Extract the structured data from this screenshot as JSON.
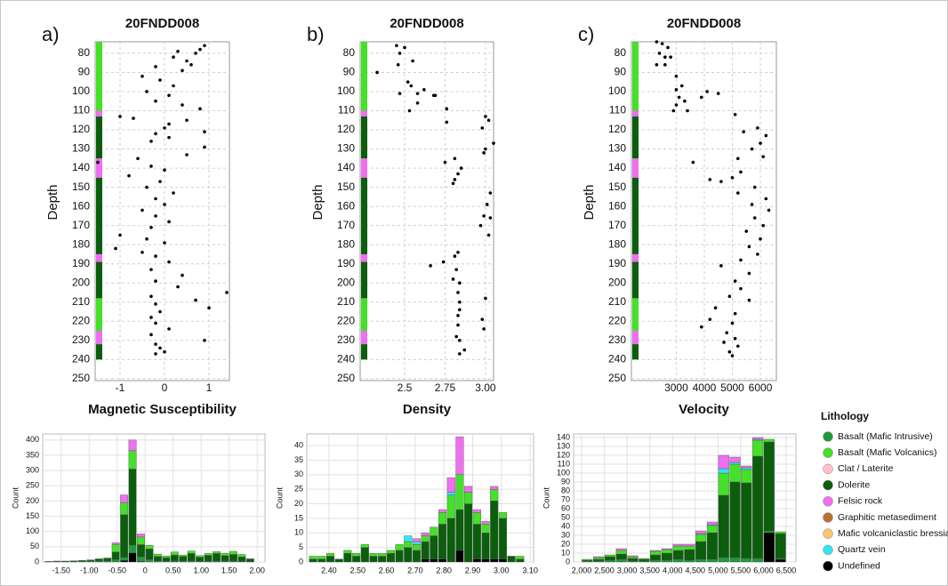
{
  "chart_data": [
    {
      "type": "scatter",
      "panel": "a)",
      "title": "20FNDD008",
      "ylabel": "Depth",
      "xlabel": "Magnetic Susceptibility",
      "color": "#000000",
      "grid": true,
      "y_inverted": true,
      "x": [
        0.9,
        0.8,
        0.3,
        0.7,
        0.2,
        0.5,
        0.6,
        -0.2,
        0.4,
        -0.5,
        -0.1,
        0.2,
        -0.4,
        0.1,
        -0.2,
        0.4,
        0.8,
        -1.0,
        -0.7,
        0.5,
        0.1,
        0.0,
        0.9,
        -0.2,
        0.1,
        -0.3,
        0.9,
        0.5,
        -0.6,
        -1.5,
        -0.3,
        0.0,
        -0.8,
        -0.1,
        -0.4,
        0.2,
        -0.2,
        0.0,
        -0.5,
        -0.2,
        0.1,
        -0.3,
        -1.0,
        -0.4,
        0.0,
        -1.1,
        -0.5,
        -0.2,
        0.1,
        -0.3,
        0.4,
        -0.2,
        0.3,
        1.4,
        -0.3,
        0.7,
        -0.2,
        1.0,
        -0.1,
        -0.3,
        -0.2,
        0.1,
        -0.3,
        0.9,
        -0.2,
        -0.1,
        0.0,
        -0.2
      ],
      "y": [
        76,
        78,
        79,
        80,
        82,
        84,
        86,
        87,
        89,
        92,
        94,
        97,
        100,
        102,
        105,
        107,
        109,
        113,
        114,
        115,
        117,
        119,
        121,
        122,
        124,
        126,
        129,
        133,
        135,
        137,
        139,
        141,
        144,
        147,
        150,
        153,
        156,
        159,
        162,
        165,
        168,
        171,
        175,
        177,
        179,
        182,
        184,
        186,
        189,
        193,
        196,
        199,
        202,
        205,
        207,
        209,
        211,
        213,
        215,
        218,
        221,
        224,
        227,
        230,
        232,
        234,
        236,
        237
      ],
      "xlim": [
        -1.56,
        1.46
      ],
      "ylim": [
        74,
        251
      ],
      "xticks": [
        -1,
        0,
        1
      ],
      "yticks": [
        80,
        90,
        100,
        110,
        120,
        130,
        140,
        150,
        160,
        170,
        180,
        190,
        200,
        210,
        220,
        230,
        240,
        250
      ]
    },
    {
      "type": "scatter",
      "panel": "b)",
      "title": "20FNDD008",
      "ylabel": "Depth",
      "xlabel": "Density",
      "color": "#000000",
      "grid": true,
      "y_inverted": true,
      "x": [
        2.45,
        2.5,
        2.47,
        2.55,
        2.46,
        2.33,
        2.52,
        2.54,
        2.47,
        2.62,
        2.58,
        2.68,
        2.69,
        2.58,
        2.53,
        2.76,
        2.76,
        3.0,
        3.02,
        2.98,
        3.05,
        3.0,
        2.99,
        2.81,
        2.75,
        2.85,
        2.83,
        2.81,
        2.8,
        3.03,
        3.01,
        3.03,
        2.99,
        2.97,
        3.02,
        2.83,
        2.81,
        2.66,
        2.74,
        2.82,
        2.8,
        2.84,
        2.83,
        3.0,
        2.84,
        2.84,
        2.83,
        2.98,
        2.83,
        2.99,
        2.82,
        2.84,
        2.87,
        2.84
      ],
      "y": [
        76,
        77,
        80,
        84,
        86,
        90,
        95,
        97,
        101,
        99,
        101,
        102,
        102,
        106,
        110,
        109,
        116,
        113,
        115,
        119,
        127,
        130,
        132,
        135,
        137,
        140,
        143,
        146,
        148,
        153,
        159,
        166,
        165,
        170,
        175,
        184,
        186,
        191,
        189,
        193,
        198,
        200,
        205,
        208,
        210,
        214,
        217,
        219,
        222,
        224,
        228,
        230,
        235,
        237
      ],
      "xlim": [
        2.225,
        3.05
      ],
      "ylim": [
        74,
        251
      ],
      "xticks": [
        2.5,
        2.75,
        {
          "value": 3,
          "label": "3.00"
        }
      ],
      "yticks": [
        80,
        90,
        100,
        110,
        120,
        130,
        140,
        150,
        160,
        170,
        180,
        190,
        200,
        210,
        220,
        230,
        240,
        250
      ]
    },
    {
      "type": "scatter",
      "panel": "c)",
      "title": "20FNDD008",
      "ylabel": "Depth",
      "xlabel": "Velocity",
      "color": "#000000",
      "grid": true,
      "y_inverted": true,
      "x": [
        2300,
        2500,
        2700,
        2400,
        2600,
        2800,
        2300,
        2600,
        3000,
        3200,
        3000,
        3100,
        3300,
        3000,
        3400,
        2900,
        4100,
        4500,
        3900,
        5100,
        5900,
        6200,
        5400,
        6000,
        5700,
        6100,
        5200,
        3600,
        5300,
        5000,
        4200,
        4600,
        5800,
        5200,
        6200,
        5700,
        6300,
        5800,
        6100,
        5500,
        6000,
        5600,
        5900,
        5300,
        4600,
        5600,
        5100,
        5300,
        4900,
        5600,
        4400,
        5100,
        4200,
        5000,
        3900,
        4800,
        5100,
        4700,
        5200,
        4900,
        5000
      ],
      "y": [
        74,
        75,
        77,
        80,
        82,
        82,
        86,
        86,
        92,
        97,
        99,
        103,
        105,
        107,
        110,
        110,
        100,
        101,
        103,
        112,
        119,
        123,
        121,
        127,
        130,
        134,
        135,
        137,
        142,
        145,
        146,
        147,
        150,
        153,
        156,
        159,
        162,
        166,
        170,
        173,
        177,
        181,
        185,
        188,
        191,
        195,
        199,
        203,
        207,
        209,
        213,
        216,
        219,
        221,
        223,
        226,
        229,
        231,
        233,
        236,
        238
      ],
      "xlim": [
        1400,
        6570
      ],
      "ylim": [
        74,
        251
      ],
      "xticks": [
        3000,
        4000,
        5000,
        6000
      ],
      "yticks": [
        80,
        90,
        100,
        110,
        120,
        130,
        140,
        150,
        160,
        170,
        180,
        190,
        200,
        210,
        220,
        230,
        240,
        250
      ]
    },
    {
      "type": "histogram",
      "ylabel": "Count",
      "grid": true,
      "bins": [
        -1.8,
        -1.65,
        -1.5,
        -1.35,
        -1.2,
        -1.05,
        -0.9,
        -0.75,
        -0.6,
        -0.45,
        -0.3,
        -0.15,
        0,
        0.15,
        0.3,
        0.45,
        0.6,
        0.75,
        0.9,
        1.05,
        1.2,
        1.35,
        1.5,
        1.65,
        1.8,
        1.95,
        2.1
      ],
      "series": [
        {
          "name": "Undefined",
          "values": [
            0,
            0,
            0,
            0,
            0,
            0,
            0,
            0,
            0,
            5,
            30,
            2,
            0,
            0,
            0,
            0,
            0,
            0,
            0,
            0,
            0,
            0,
            0,
            0,
            0,
            0
          ]
        },
        {
          "name": "Basalt (Mafic Intrusive)",
          "values": [
            1,
            1,
            1,
            1,
            2,
            3,
            3,
            3,
            8,
            10,
            25,
            15,
            8,
            3,
            2,
            3,
            3,
            3,
            2,
            2,
            3,
            3,
            3,
            2,
            1,
            0
          ]
        },
        {
          "name": "Dolerite",
          "values": [
            1,
            2,
            2,
            3,
            3,
            4,
            6,
            8,
            25,
            140,
            250,
            40,
            35,
            15,
            12,
            20,
            15,
            25,
            14,
            20,
            25,
            18,
            22,
            15,
            8,
            0
          ]
        },
        {
          "name": "Basalt (Mafic Volcanics)",
          "values": [
            0,
            0,
            0,
            0,
            0,
            0,
            2,
            3,
            25,
            40,
            60,
            25,
            12,
            8,
            6,
            10,
            5,
            8,
            5,
            6,
            6,
            8,
            10,
            8,
            2,
            0
          ]
        },
        {
          "name": "Felsic rock",
          "values": [
            0,
            0,
            0,
            0,
            0,
            0,
            0,
            0,
            5,
            25,
            35,
            10,
            0,
            0,
            0,
            0,
            0,
            0,
            0,
            0,
            0,
            0,
            0,
            0,
            0,
            0
          ]
        }
      ],
      "xlim": [
        -1.83,
        2.14
      ],
      "ylim": [
        0,
        420
      ],
      "xticks": [
        {
          "value": -1.5,
          "label": "-1.50"
        },
        {
          "value": -1,
          "label": "-1.00"
        },
        {
          "value": -0.5,
          "label": "-0.50"
        },
        0,
        {
          "value": 0.5,
          "label": "0.50"
        },
        {
          "value": 1,
          "label": "1.00"
        },
        {
          "value": 1.5,
          "label": "1.50"
        },
        {
          "value": 2,
          "label": "2.00"
        }
      ],
      "yticks": [
        0,
        50,
        100,
        150,
        200,
        250,
        300,
        350,
        400
      ]
    },
    {
      "type": "histogram",
      "ylabel": "Count",
      "grid": true,
      "bins": [
        2.33,
        2.36,
        2.39,
        2.42,
        2.45,
        2.48,
        2.51,
        2.54,
        2.57,
        2.6,
        2.63,
        2.66,
        2.69,
        2.72,
        2.75,
        2.78,
        2.81,
        2.84,
        2.87,
        2.9,
        2.93,
        2.96,
        2.99,
        3.02,
        3.05,
        3.08
      ],
      "series": [
        {
          "name": "Undefined",
          "values": [
            0,
            0,
            0,
            0,
            0,
            0,
            0,
            0,
            0,
            0,
            0,
            0,
            0,
            1,
            1,
            1,
            0,
            4,
            0,
            1,
            1,
            1,
            1,
            0,
            0
          ]
        },
        {
          "name": "Dolerite",
          "values": [
            1,
            1,
            2,
            1,
            3,
            2,
            5,
            2,
            2,
            3,
            4,
            5,
            4,
            6,
            8,
            12,
            15,
            14,
            20,
            12,
            9,
            20,
            14,
            2,
            1
          ]
        },
        {
          "name": "Basalt (Mafic Volcanics)",
          "values": [
            1,
            1,
            1,
            0,
            1,
            1,
            1,
            1,
            1,
            1,
            2,
            2,
            2,
            2,
            3,
            4,
            8,
            12,
            4,
            4,
            3,
            4,
            2,
            0,
            1
          ]
        },
        {
          "name": "Quartz vein",
          "values": [
            0,
            0,
            0,
            0,
            0,
            0,
            0,
            0,
            0,
            0,
            0,
            2,
            1,
            0,
            0,
            0,
            1,
            0,
            0,
            0,
            0,
            0,
            0,
            0,
            0
          ]
        },
        {
          "name": "Felsic rock",
          "values": [
            0,
            0,
            0,
            0,
            0,
            0,
            0,
            0,
            0,
            0,
            0,
            0,
            1,
            1,
            0,
            1,
            5,
            13,
            2,
            1,
            1,
            1,
            0,
            0,
            0
          ]
        }
      ],
      "xlim": [
        2.323,
        3.112
      ],
      "ylim": [
        0,
        44
      ],
      "xticks": [
        {
          "value": 2.4,
          "label": "2.40"
        },
        {
          "value": 2.5,
          "label": "2.50"
        },
        {
          "value": 2.6,
          "label": "2.60"
        },
        {
          "value": 2.7,
          "label": "2.70"
        },
        {
          "value": 2.8,
          "label": "2.80"
        },
        {
          "value": 2.9,
          "label": "2.90"
        },
        {
          "value": 3,
          "label": "3.00"
        },
        {
          "value": 3.1,
          "label": "3.10"
        }
      ],
      "yticks": [
        0,
        5,
        10,
        15,
        20,
        25,
        30,
        35,
        40
      ]
    },
    {
      "type": "histogram",
      "ylabel": "Count",
      "grid": true,
      "bins": [
        2000,
        2250,
        2500,
        2750,
        3000,
        3250,
        3500,
        3750,
        4000,
        4250,
        4500,
        4750,
        5000,
        5250,
        5500,
        5750,
        6000,
        6250,
        6500
      ],
      "series": [
        {
          "name": "Undefined",
          "values": [
            0,
            0,
            0,
            0,
            0,
            0,
            0,
            0,
            0,
            0,
            0,
            0,
            0,
            0,
            0,
            0,
            33,
            3
          ]
        },
        {
          "name": "Basalt (Mafic Intrusive)",
          "values": [
            1,
            1,
            2,
            3,
            1,
            1,
            2,
            2,
            3,
            2,
            3,
            3,
            5,
            5,
            4,
            4,
            2,
            1
          ]
        },
        {
          "name": "Dolerite",
          "values": [
            1,
            2,
            4,
            6,
            3,
            2,
            6,
            8,
            10,
            12,
            20,
            30,
            70,
            85,
            85,
            115,
            100,
            28
          ]
        },
        {
          "name": "Basalt (Mafic Volcanics)",
          "values": [
            1,
            2,
            2,
            4,
            2,
            1,
            4,
            4,
            5,
            4,
            8,
            8,
            25,
            20,
            15,
            18,
            3,
            2
          ]
        },
        {
          "name": "Quartz vein",
          "values": [
            0,
            0,
            0,
            0,
            0,
            0,
            0,
            0,
            0,
            0,
            1,
            1,
            5,
            2,
            2,
            1,
            0,
            0
          ]
        },
        {
          "name": "Felsic rock",
          "values": [
            0,
            1,
            0,
            2,
            1,
            0,
            1,
            1,
            2,
            2,
            3,
            3,
            15,
            6,
            2,
            2,
            0,
            0
          ]
        }
      ],
      "xlim": [
        1824,
        6715
      ],
      "ylim": [
        0,
        144
      ],
      "xticks": [
        {
          "value": 2000,
          "label": "2,000"
        },
        {
          "value": 2500,
          "label": "2,500"
        },
        {
          "value": 3000,
          "label": "3,000"
        },
        {
          "value": 3500,
          "label": "3,500"
        },
        {
          "value": 4000,
          "label": "4,000"
        },
        {
          "value": 4500,
          "label": "4,500"
        },
        {
          "value": 5000,
          "label": "5,000"
        },
        {
          "value": 5500,
          "label": "5,500"
        },
        {
          "value": 6000,
          "label": "6,000"
        },
        {
          "value": 6500,
          "label": "6,500"
        }
      ],
      "yticks": [
        0,
        10,
        20,
        30,
        40,
        50,
        60,
        70,
        80,
        90,
        100,
        110,
        120,
        130,
        140
      ]
    }
  ],
  "lithology_log": [
    {
      "from": 74,
      "to": 110,
      "lithology": "Basalt (Mafic Volcanics)"
    },
    {
      "from": 110,
      "to": 113,
      "lithology": "Felsic rock"
    },
    {
      "from": 113,
      "to": 135,
      "lithology": "Dolerite"
    },
    {
      "from": 135,
      "to": 145,
      "lithology": "Felsic rock"
    },
    {
      "from": 145,
      "to": 185,
      "lithology": "Dolerite"
    },
    {
      "from": 185,
      "to": 189,
      "lithology": "Felsic rock"
    },
    {
      "from": 189,
      "to": 208,
      "lithology": "Dolerite"
    },
    {
      "from": 208,
      "to": 225,
      "lithology": "Basalt (Mafic Volcanics)"
    },
    {
      "from": 225,
      "to": 232,
      "lithology": "Felsic rock"
    },
    {
      "from": 232,
      "to": 240,
      "lithology": "Dolerite"
    }
  ],
  "legend": {
    "title": "Lithology",
    "items": [
      {
        "name": "Basalt (Mafic Intrusive)",
        "color": "#1f9a3c"
      },
      {
        "name": "Basalt (Mafic Volcanics)",
        "color": "#44e02a"
      },
      {
        "name": "Clat / Laterite",
        "color": "#ffc0cb"
      },
      {
        "name": "Dolerite",
        "color": "#0b5e0b"
      },
      {
        "name": "Felsic rock",
        "color": "#f06ef0"
      },
      {
        "name": "Graphitic metasediment",
        "color": "#b87333"
      },
      {
        "name": "Mafic volcaniclastic bressia",
        "color": "#f7c56a"
      },
      {
        "name": "Quartz vein",
        "color": "#34e4f2"
      },
      {
        "name": "Undefined",
        "color": "#000000"
      }
    ]
  }
}
